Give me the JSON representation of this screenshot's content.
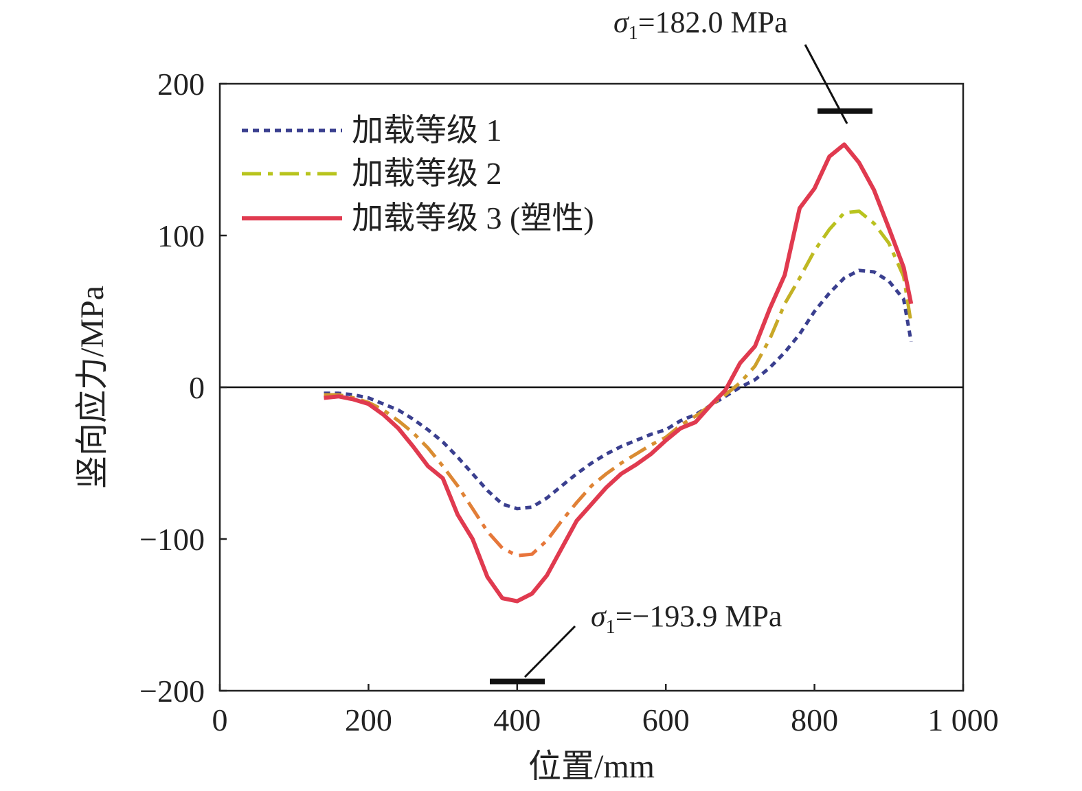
{
  "chart_data": {
    "type": "line",
    "title": "",
    "xlabel": "位置/mm",
    "ylabel": "竖向应力/MPa",
    "xlim": [
      0,
      1000
    ],
    "ylim": [
      -200,
      200
    ],
    "x_ticks": [
      0,
      200,
      400,
      600,
      800,
      1000
    ],
    "x_tick_labels": [
      "0",
      "200",
      "400",
      "600",
      "800",
      "1 000"
    ],
    "y_ticks": [
      -200,
      -100,
      0,
      100,
      200
    ],
    "y_tick_labels": [
      "−200",
      "−100",
      "0",
      "100",
      "200"
    ],
    "grid": false,
    "zero_line": true,
    "legend_position": "top-left",
    "x": [
      140,
      160,
      180,
      200,
      220,
      240,
      260,
      280,
      300,
      320,
      340,
      360,
      380,
      400,
      420,
      440,
      460,
      480,
      500,
      520,
      540,
      560,
      580,
      600,
      620,
      640,
      660,
      680,
      700,
      720,
      740,
      760,
      780,
      800,
      820,
      840,
      860,
      880,
      900,
      920,
      930
    ],
    "series": [
      {
        "name": "加载等级 1",
        "style": "dotted",
        "color": "#3a3f8f",
        "values": [
          -4,
          -4,
          -5,
          -7,
          -11,
          -15,
          -21,
          -28,
          -36,
          -46,
          -57,
          -68,
          -77,
          -80,
          -79,
          -73,
          -65,
          -57,
          -50,
          -44,
          -39,
          -35,
          -31,
          -28,
          -22,
          -18,
          -12,
          -6,
          0,
          5,
          13,
          23,
          35,
          50,
          62,
          72,
          77,
          76,
          70,
          58,
          30
        ]
      },
      {
        "name": "加载等级 2",
        "style": "dashdot",
        "gradient": [
          "#b8c41e",
          "#e8743b"
        ],
        "values": [
          -5,
          -5,
          -7,
          -10,
          -15,
          -22,
          -30,
          -40,
          -52,
          -65,
          -80,
          -95,
          -106,
          -111,
          -110,
          -101,
          -88,
          -76,
          -65,
          -57,
          -50,
          -44,
          -38,
          -33,
          -25,
          -19,
          -12,
          -5,
          3,
          14,
          32,
          55,
          72,
          90,
          104,
          115,
          116,
          108,
          95,
          73,
          42
        ]
      },
      {
        "name": "加载等级 3 (塑性)",
        "style": "solid",
        "color": "#e03a4f",
        "values": [
          -7,
          -6,
          -8,
          -11,
          -18,
          -27,
          -39,
          -52,
          -60,
          -84,
          -100,
          -125,
          -139,
          -141,
          -136,
          -124,
          -106,
          -88,
          -77,
          -66,
          -57,
          -51,
          -44,
          -35,
          -27,
          -23,
          -12,
          -2,
          16,
          27,
          52,
          74,
          118,
          131,
          152,
          160,
          148,
          130,
          105,
          79,
          55
        ]
      }
    ],
    "annotations": [
      {
        "symbol": "σ",
        "subscript": "1",
        "label": "=182.0 MPa",
        "value": 182.0
      },
      {
        "symbol": "σ",
        "subscript": "1",
        "label": "=−193.9 MPa",
        "value": -193.9
      }
    ]
  }
}
